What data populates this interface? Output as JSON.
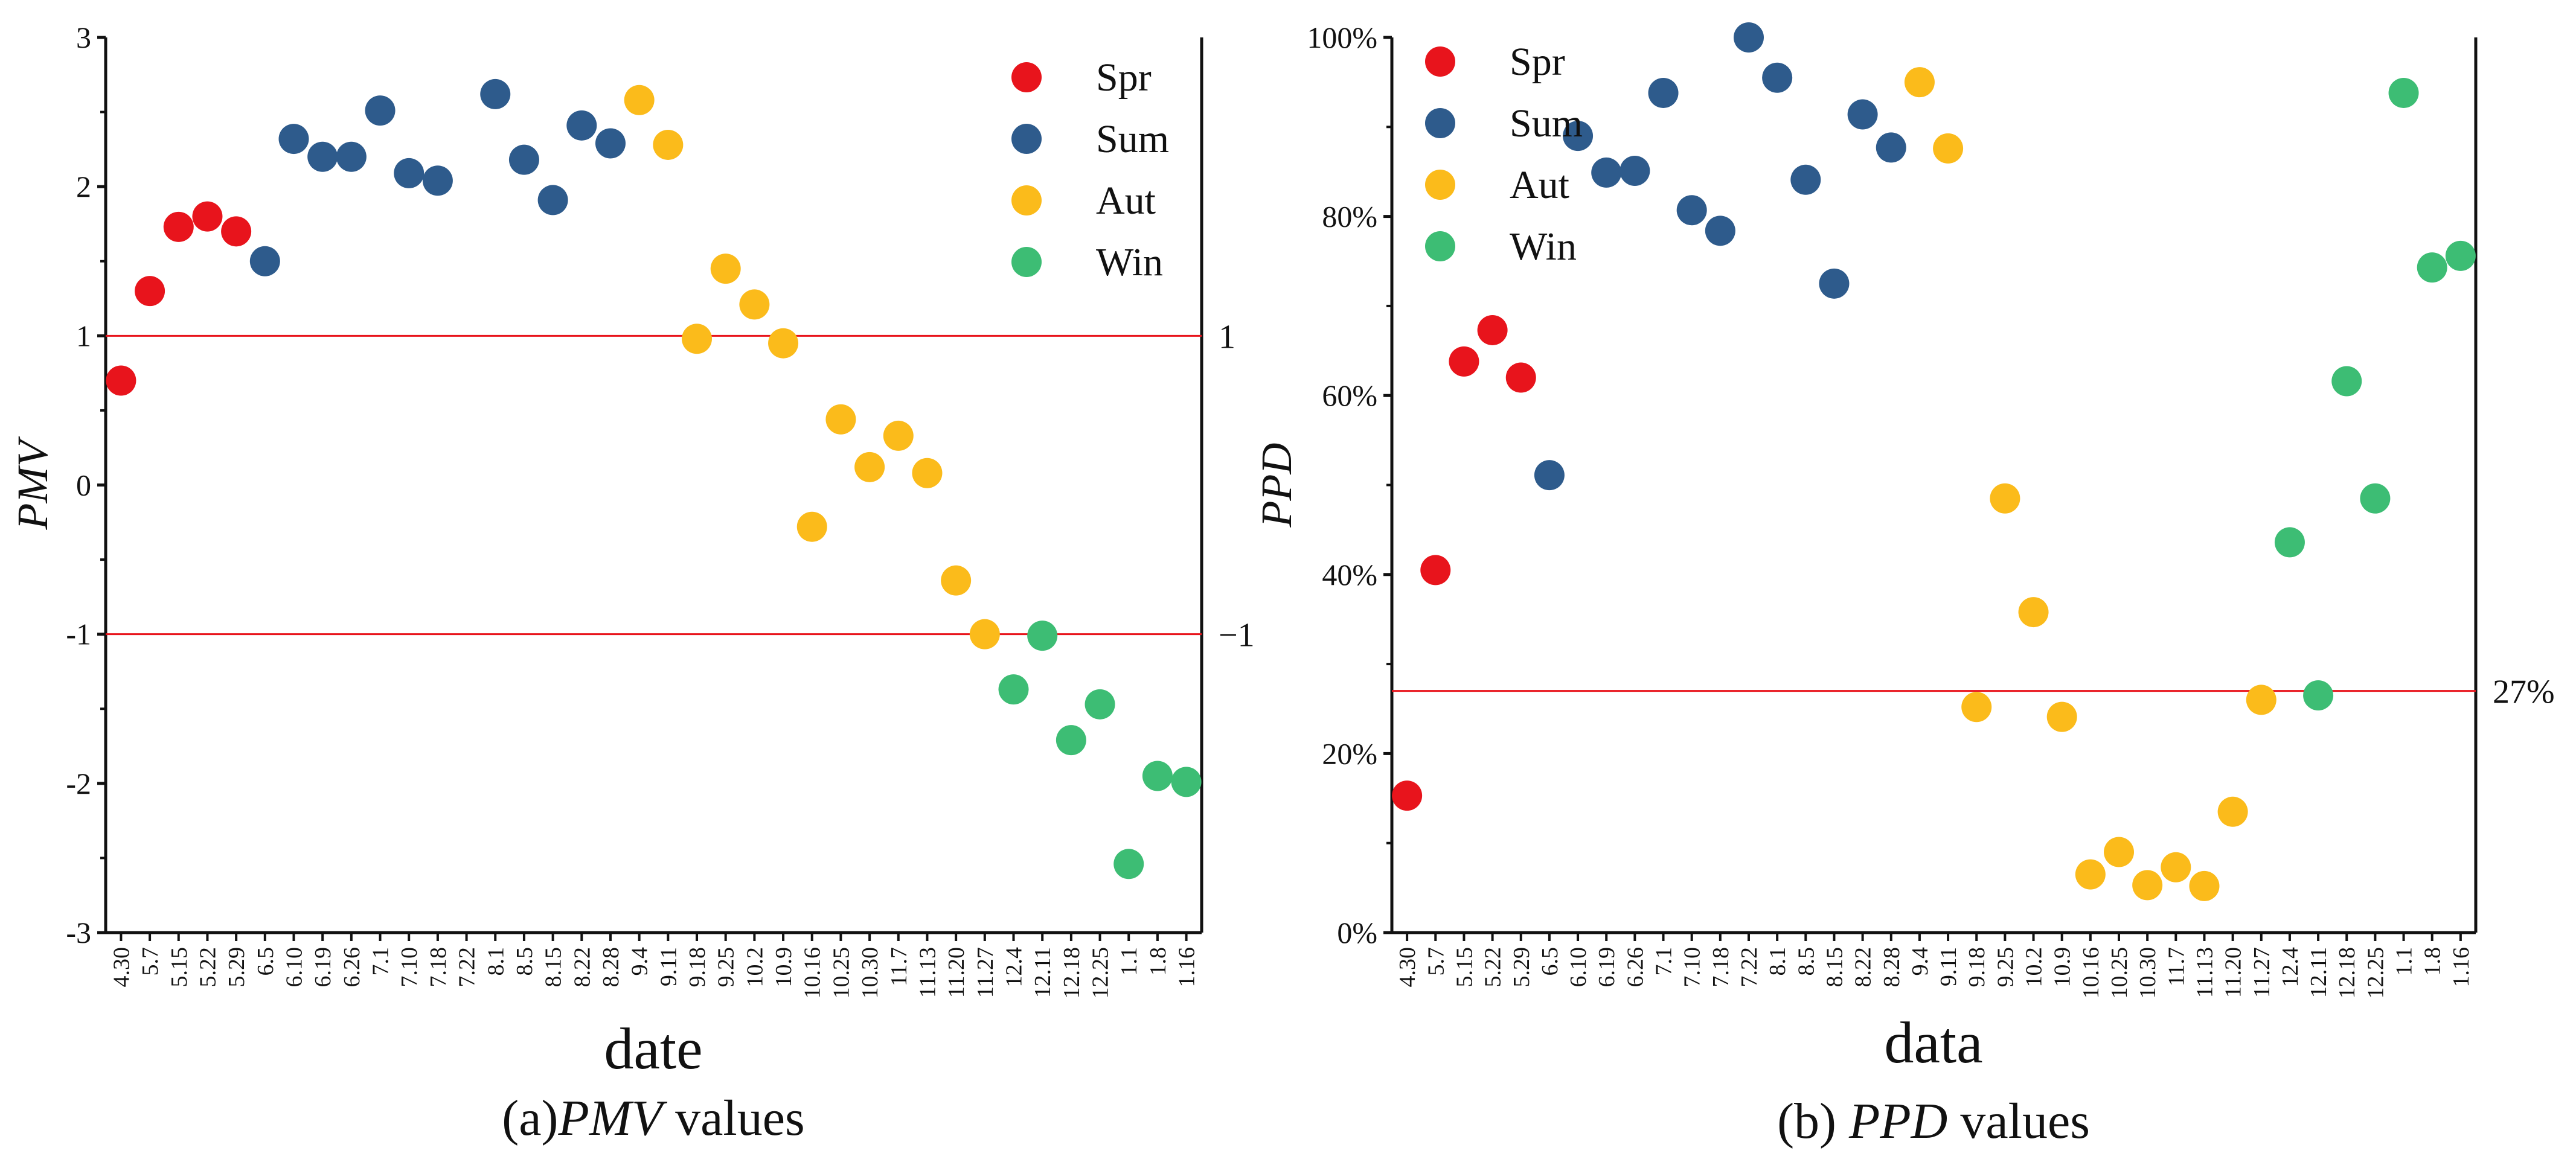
{
  "chart_data": [
    {
      "type": "scatter",
      "id": "pmv",
      "xlabel": "date",
      "ylabel": "PMV",
      "caption_prefix": "(a)",
      "caption_italic": "PMV",
      "caption_suffix": " values",
      "ylim": [
        -3,
        3
      ],
      "yticks": [
        "-3",
        "-2",
        "-1",
        "0",
        "1",
        "2",
        "3"
      ],
      "ytick_values": [
        -3,
        -2,
        -1,
        0,
        1,
        2,
        3
      ],
      "reference_lines": [
        {
          "value": 1,
          "label": "1"
        },
        {
          "value": -1,
          "label": "−1"
        }
      ],
      "legend_position": "top-right",
      "grid": false,
      "categories": [
        "4.30",
        "5.7",
        "5.15",
        "5.22",
        "5.29",
        "6.5",
        "6.10",
        "6.19",
        "6.26",
        "7.1",
        "7.10",
        "7.18",
        "7.22",
        "8.1",
        "8.5",
        "8.15",
        "8.22",
        "8.28",
        "9.4",
        "9.11",
        "9.18",
        "9.25",
        "10.2",
        "10.9",
        "10.16",
        "10.25",
        "10.30",
        "11.7",
        "11.13",
        "11.20",
        "11.27",
        "12.4",
        "12.11",
        "12.18",
        "12.25",
        "1.1",
        "1.8",
        "1.16"
      ],
      "series": [
        {
          "name": "Spr",
          "color": "#e8141c",
          "points": [
            {
              "x": "4.30",
              "y": 0.7
            },
            {
              "x": "5.7",
              "y": 1.3
            },
            {
              "x": "5.15",
              "y": 1.73
            },
            {
              "x": "5.22",
              "y": 1.8
            },
            {
              "x": "5.29",
              "y": 1.7
            }
          ]
        },
        {
          "name": "Sum",
          "color": "#2e5b8c",
          "points": [
            {
              "x": "6.5",
              "y": 1.5
            },
            {
              "x": "6.10",
              "y": 2.32
            },
            {
              "x": "6.19",
              "y": 2.2
            },
            {
              "x": "6.26",
              "y": 2.2
            },
            {
              "x": "7.1",
              "y": 2.51
            },
            {
              "x": "7.10",
              "y": 2.09
            },
            {
              "x": "7.18",
              "y": 2.04
            },
            {
              "x": "8.1",
              "y": 2.62
            },
            {
              "x": "8.5",
              "y": 2.18
            },
            {
              "x": "8.15",
              "y": 1.91
            },
            {
              "x": "8.22",
              "y": 2.41
            },
            {
              "x": "8.28",
              "y": 2.29
            }
          ]
        },
        {
          "name": "Aut",
          "color": "#fbbb1b",
          "points": [
            {
              "x": "9.4",
              "y": 2.58
            },
            {
              "x": "9.11",
              "y": 2.28
            },
            {
              "x": "9.18",
              "y": 0.98
            },
            {
              "x": "9.25",
              "y": 1.45
            },
            {
              "x": "10.2",
              "y": 1.21
            },
            {
              "x": "10.9",
              "y": 0.95
            },
            {
              "x": "10.16",
              "y": -0.28
            },
            {
              "x": "10.25",
              "y": 0.44
            },
            {
              "x": "10.30",
              "y": 0.12
            },
            {
              "x": "11.7",
              "y": 0.33
            },
            {
              "x": "11.13",
              "y": 0.08
            },
            {
              "x": "11.20",
              "y": -0.64
            },
            {
              "x": "11.27",
              "y": -1.0
            }
          ]
        },
        {
          "name": "Win",
          "color": "#3dbd74",
          "points": [
            {
              "x": "12.4",
              "y": -1.37
            },
            {
              "x": "12.11",
              "y": -1.01
            },
            {
              "x": "12.18",
              "y": -1.71
            },
            {
              "x": "12.25",
              "y": -1.47
            },
            {
              "x": "1.1",
              "y": -2.54
            },
            {
              "x": "1.8",
              "y": -1.95
            },
            {
              "x": "1.16",
              "y": -1.99
            }
          ]
        }
      ]
    },
    {
      "type": "scatter",
      "id": "ppd",
      "xlabel": "data",
      "ylabel": "PPD",
      "caption_prefix": "(b) ",
      "caption_italic": "PPD",
      "caption_suffix": " values",
      "ylim": [
        0,
        100
      ],
      "yticks": [
        "0%",
        "20%",
        "40%",
        "60%",
        "80%",
        "100%"
      ],
      "ytick_values": [
        0,
        20,
        40,
        60,
        80,
        100
      ],
      "reference_lines": [
        {
          "value": 27,
          "label": "27%"
        }
      ],
      "legend_position": "top-left",
      "grid": false,
      "categories": [
        "4.30",
        "5.7",
        "5.15",
        "5.22",
        "5.29",
        "6.5",
        "6.10",
        "6.19",
        "6.26",
        "7.1",
        "7.10",
        "7.18",
        "7.22",
        "8.1",
        "8.5",
        "8.15",
        "8.22",
        "8.28",
        "9.4",
        "9.11",
        "9.18",
        "9.25",
        "10.2",
        "10.9",
        "10.16",
        "10.25",
        "10.30",
        "11.7",
        "11.13",
        "11.20",
        "11.27",
        "12.4",
        "12.11",
        "12.18",
        "12.25",
        "1.1",
        "1.8",
        "1.16"
      ],
      "series": [
        {
          "name": "Spr",
          "color": "#e8141c",
          "points": [
            {
              "x": "4.30",
              "y": 15.3
            },
            {
              "x": "5.7",
              "y": 40.5
            },
            {
              "x": "5.15",
              "y": 63.8
            },
            {
              "x": "5.22",
              "y": 67.3
            },
            {
              "x": "5.29",
              "y": 62.0
            }
          ]
        },
        {
          "name": "Sum",
          "color": "#2e5b8c",
          "points": [
            {
              "x": "6.5",
              "y": 51.1
            },
            {
              "x": "6.10",
              "y": 89.0
            },
            {
              "x": "6.19",
              "y": 84.9
            },
            {
              "x": "6.26",
              "y": 85.1
            },
            {
              "x": "7.1",
              "y": 93.8
            },
            {
              "x": "7.10",
              "y": 80.7
            },
            {
              "x": "7.18",
              "y": 78.4
            },
            {
              "x": "7.22",
              "y": 100.0
            },
            {
              "x": "8.1",
              "y": 95.5
            },
            {
              "x": "8.5",
              "y": 84.1
            },
            {
              "x": "8.15",
              "y": 72.5
            },
            {
              "x": "8.22",
              "y": 91.4
            },
            {
              "x": "8.28",
              "y": 87.7
            }
          ]
        },
        {
          "name": "Aut",
          "color": "#fbbb1b",
          "points": [
            {
              "x": "9.4",
              "y": 95.0
            },
            {
              "x": "9.11",
              "y": 87.6
            },
            {
              "x": "9.18",
              "y": 25.2
            },
            {
              "x": "9.25",
              "y": 48.5
            },
            {
              "x": "10.2",
              "y": 35.8
            },
            {
              "x": "10.9",
              "y": 24.1
            },
            {
              "x": "10.16",
              "y": 6.5
            },
            {
              "x": "10.25",
              "y": 9.0
            },
            {
              "x": "10.30",
              "y": 5.3
            },
            {
              "x": "11.7",
              "y": 7.3
            },
            {
              "x": "11.13",
              "y": 5.2
            },
            {
              "x": "11.20",
              "y": 13.5
            },
            {
              "x": "11.27",
              "y": 26.0
            }
          ]
        },
        {
          "name": "Win",
          "color": "#3dbd74",
          "points": [
            {
              "x": "12.4",
              "y": 43.6
            },
            {
              "x": "12.11",
              "y": 26.5
            },
            {
              "x": "12.18",
              "y": 61.6
            },
            {
              "x": "12.25",
              "y": 48.5
            },
            {
              "x": "1.1",
              "y": 93.8
            },
            {
              "x": "1.8",
              "y": 74.3
            },
            {
              "x": "1.16",
              "y": 75.6
            }
          ]
        }
      ]
    }
  ]
}
